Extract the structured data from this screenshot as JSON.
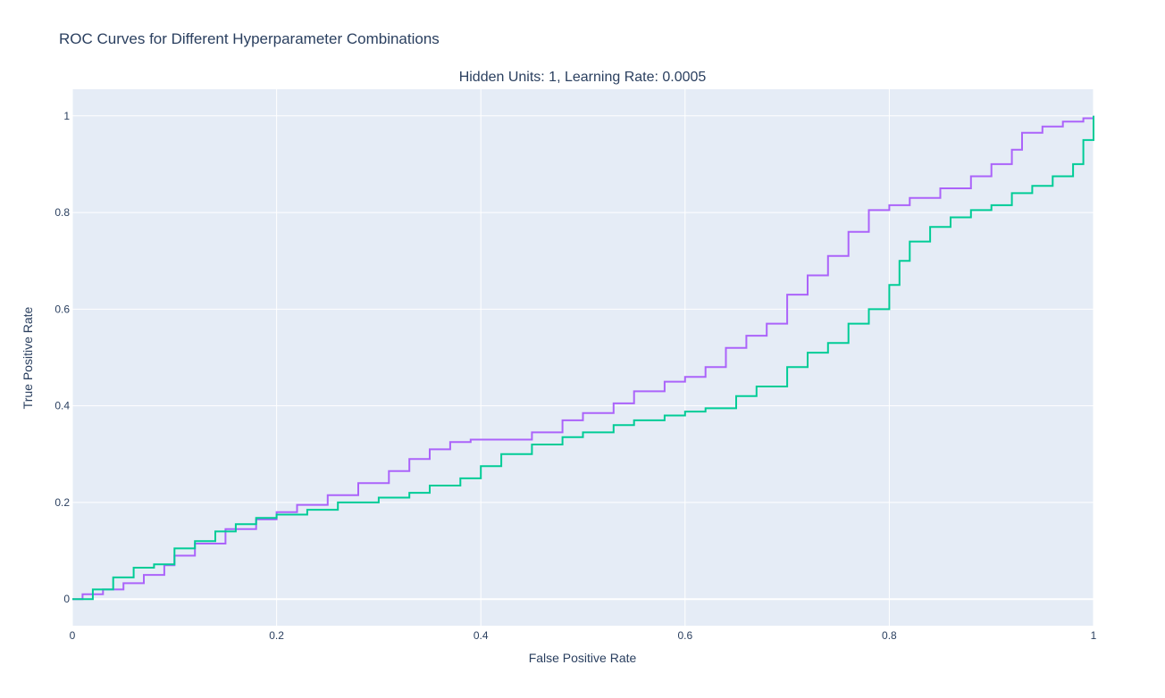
{
  "chart_data": {
    "type": "line",
    "title": "ROC Curves for Different Hyperparameter Combinations",
    "subtitle": "Hidden Units: 1, Learning Rate: 0.0005",
    "xlabel": "False Positive Rate",
    "ylabel": "True Positive Rate",
    "xlim": [
      0,
      1
    ],
    "ylim": [
      -0.055,
      1.055
    ],
    "x_ticks": [
      0,
      0.2,
      0.4,
      0.6,
      0.8,
      1
    ],
    "x_tick_labels": [
      "0",
      "0.2",
      "0.4",
      "0.6",
      "0.8",
      "1"
    ],
    "y_ticks": [
      0,
      0.2,
      0.4,
      0.6,
      0.8,
      1
    ],
    "y_tick_labels": [
      "0",
      "0.2",
      "0.4",
      "0.6",
      "0.8",
      "1"
    ],
    "grid": true,
    "legend": "none",
    "series": [
      {
        "color": "#ab63fa",
        "x": [
          0,
          0.01,
          0.03,
          0.05,
          0.07,
          0.09,
          0.1,
          0.12,
          0.15,
          0.18,
          0.2,
          0.22,
          0.25,
          0.28,
          0.31,
          0.33,
          0.35,
          0.37,
          0.39,
          0.42,
          0.45,
          0.48,
          0.5,
          0.53,
          0.55,
          0.58,
          0.6,
          0.62,
          0.64,
          0.66,
          0.68,
          0.7,
          0.72,
          0.74,
          0.76,
          0.78,
          0.8,
          0.82,
          0.85,
          0.88,
          0.9,
          0.92,
          0.93,
          0.95,
          0.97,
          0.99,
          1
        ],
        "y": [
          0,
          0.01,
          0.02,
          0.033,
          0.05,
          0.07,
          0.09,
          0.115,
          0.145,
          0.165,
          0.18,
          0.195,
          0.215,
          0.24,
          0.265,
          0.29,
          0.31,
          0.325,
          0.33,
          0.33,
          0.345,
          0.37,
          0.385,
          0.405,
          0.43,
          0.45,
          0.46,
          0.48,
          0.52,
          0.545,
          0.57,
          0.63,
          0.67,
          0.71,
          0.76,
          0.805,
          0.815,
          0.83,
          0.85,
          0.875,
          0.9,
          0.93,
          0.965,
          0.978,
          0.988,
          0.995,
          1.0
        ]
      },
      {
        "color": "#00cc96",
        "x": [
          0,
          0.02,
          0.04,
          0.06,
          0.08,
          0.1,
          0.12,
          0.14,
          0.16,
          0.18,
          0.2,
          0.23,
          0.26,
          0.3,
          0.33,
          0.35,
          0.38,
          0.4,
          0.42,
          0.45,
          0.48,
          0.5,
          0.53,
          0.55,
          0.58,
          0.6,
          0.62,
          0.65,
          0.67,
          0.7,
          0.72,
          0.74,
          0.76,
          0.78,
          0.8,
          0.81,
          0.82,
          0.84,
          0.86,
          0.88,
          0.9,
          0.92,
          0.94,
          0.96,
          0.98,
          0.99,
          1
        ],
        "y": [
          0,
          0.02,
          0.045,
          0.065,
          0.072,
          0.105,
          0.12,
          0.14,
          0.155,
          0.168,
          0.175,
          0.185,
          0.2,
          0.21,
          0.22,
          0.235,
          0.25,
          0.275,
          0.3,
          0.32,
          0.335,
          0.345,
          0.36,
          0.37,
          0.38,
          0.388,
          0.395,
          0.42,
          0.44,
          0.48,
          0.51,
          0.53,
          0.57,
          0.6,
          0.65,
          0.7,
          0.74,
          0.77,
          0.79,
          0.805,
          0.815,
          0.84,
          0.855,
          0.875,
          0.9,
          0.95,
          1.0
        ]
      }
    ]
  }
}
